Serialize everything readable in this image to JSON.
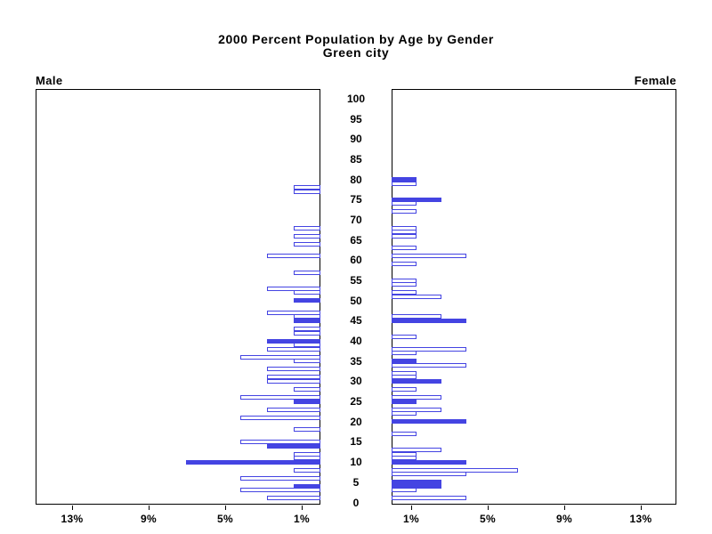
{
  "title": {
    "line1": "2000 Percent Population by Age by Gender",
    "line2": "Green city"
  },
  "panel_labels": {
    "male": "Male",
    "female": "Female"
  },
  "colors": {
    "bar_blue": "#4444E2",
    "frame_black": "#000000",
    "background": "#FFFFFF"
  },
  "chart_data": {
    "type": "bar",
    "subtype": "population-pyramid",
    "title": "2000 Percent Population by Age by Gender",
    "subtitle": "Green city",
    "orientation": "horizontal",
    "grid": false,
    "legend": "none",
    "age_axis": {
      "label_position": "center",
      "min": 0,
      "max": 100,
      "tick_step": 5
    },
    "value_axis": {
      "unit": "%",
      "min": 0,
      "max": 15,
      "tick_values": [
        1,
        5,
        9,
        13
      ],
      "tick_labels": [
        "1%",
        "5%",
        "9%",
        "13%"
      ]
    },
    "bar_styles": {
      "hollow": "outlined white bar",
      "solid": "filled blue bar"
    },
    "panels": [
      {
        "gender": "Male",
        "side": "left",
        "bars_grow": "leftward",
        "bars": [
          {
            "age": 78,
            "pct": 1.4,
            "filled": false
          },
          {
            "age": 77,
            "pct": 1.4,
            "filled": false
          },
          {
            "age": 68,
            "pct": 1.4,
            "filled": false
          },
          {
            "age": 66,
            "pct": 1.4,
            "filled": false
          },
          {
            "age": 64,
            "pct": 1.4,
            "filled": false
          },
          {
            "age": 61,
            "pct": 2.8,
            "filled": false
          },
          {
            "age": 57,
            "pct": 1.4,
            "filled": false
          },
          {
            "age": 53,
            "pct": 2.8,
            "filled": false
          },
          {
            "age": 52,
            "pct": 1.4,
            "filled": false
          },
          {
            "age": 50,
            "pct": 1.4,
            "filled": true
          },
          {
            "age": 47,
            "pct": 2.8,
            "filled": false
          },
          {
            "age": 46,
            "pct": 1.4,
            "filled": false
          },
          {
            "age": 45,
            "pct": 1.4,
            "filled": true
          },
          {
            "age": 43,
            "pct": 1.4,
            "filled": false
          },
          {
            "age": 42,
            "pct": 1.4,
            "filled": false
          },
          {
            "age": 40,
            "pct": 2.8,
            "filled": true
          },
          {
            "age": 39,
            "pct": 1.4,
            "filled": false
          },
          {
            "age": 38,
            "pct": 2.8,
            "filled": false
          },
          {
            "age": 36,
            "pct": 4.2,
            "filled": false
          },
          {
            "age": 35,
            "pct": 1.4,
            "filled": false
          },
          {
            "age": 33,
            "pct": 2.8,
            "filled": false
          },
          {
            "age": 31,
            "pct": 2.8,
            "filled": false
          },
          {
            "age": 30,
            "pct": 2.8,
            "filled": false
          },
          {
            "age": 28,
            "pct": 1.4,
            "filled": false
          },
          {
            "age": 26,
            "pct": 4.2,
            "filled": false
          },
          {
            "age": 25,
            "pct": 1.4,
            "filled": true
          },
          {
            "age": 23,
            "pct": 2.8,
            "filled": false
          },
          {
            "age": 21,
            "pct": 4.2,
            "filled": false
          },
          {
            "age": 18,
            "pct": 1.4,
            "filled": false
          },
          {
            "age": 15,
            "pct": 4.2,
            "filled": false
          },
          {
            "age": 14,
            "pct": 2.8,
            "filled": true
          },
          {
            "age": 12,
            "pct": 1.4,
            "filled": false
          },
          {
            "age": 11,
            "pct": 1.4,
            "filled": false
          },
          {
            "age": 10,
            "pct": 7.0,
            "filled": true
          },
          {
            "age": 8,
            "pct": 1.4,
            "filled": false
          },
          {
            "age": 6,
            "pct": 4.2,
            "filled": false
          },
          {
            "age": 4,
            "pct": 1.4,
            "filled": true
          },
          {
            "age": 3,
            "pct": 4.2,
            "filled": false
          },
          {
            "age": 1,
            "pct": 2.8,
            "filled": false
          }
        ]
      },
      {
        "gender": "Female",
        "side": "right",
        "bars_grow": "rightward",
        "bars": [
          {
            "age": 80,
            "pct": 1.3,
            "filled": true
          },
          {
            "age": 79,
            "pct": 1.3,
            "filled": false
          },
          {
            "age": 75,
            "pct": 2.6,
            "filled": true
          },
          {
            "age": 74,
            "pct": 1.3,
            "filled": false
          },
          {
            "age": 72,
            "pct": 1.3,
            "filled": false
          },
          {
            "age": 68,
            "pct": 1.3,
            "filled": false
          },
          {
            "age": 67,
            "pct": 1.3,
            "filled": false
          },
          {
            "age": 66,
            "pct": 1.3,
            "filled": false
          },
          {
            "age": 63,
            "pct": 1.3,
            "filled": false
          },
          {
            "age": 61,
            "pct": 3.9,
            "filled": false
          },
          {
            "age": 59,
            "pct": 1.3,
            "filled": false
          },
          {
            "age": 55,
            "pct": 1.3,
            "filled": false
          },
          {
            "age": 54,
            "pct": 1.3,
            "filled": false
          },
          {
            "age": 52,
            "pct": 1.3,
            "filled": false
          },
          {
            "age": 51,
            "pct": 2.6,
            "filled": false
          },
          {
            "age": 46,
            "pct": 2.6,
            "filled": false
          },
          {
            "age": 45,
            "pct": 3.9,
            "filled": true
          },
          {
            "age": 41,
            "pct": 1.3,
            "filled": false
          },
          {
            "age": 38,
            "pct": 3.9,
            "filled": false
          },
          {
            "age": 37,
            "pct": 1.3,
            "filled": false
          },
          {
            "age": 35,
            "pct": 1.3,
            "filled": true
          },
          {
            "age": 34,
            "pct": 3.9,
            "filled": false
          },
          {
            "age": 32,
            "pct": 1.3,
            "filled": false
          },
          {
            "age": 31,
            "pct": 1.3,
            "filled": false
          },
          {
            "age": 30,
            "pct": 2.6,
            "filled": true
          },
          {
            "age": 28,
            "pct": 1.3,
            "filled": false
          },
          {
            "age": 26,
            "pct": 2.6,
            "filled": false
          },
          {
            "age": 25,
            "pct": 1.3,
            "filled": true
          },
          {
            "age": 23,
            "pct": 2.6,
            "filled": false
          },
          {
            "age": 22,
            "pct": 1.3,
            "filled": false
          },
          {
            "age": 20,
            "pct": 3.9,
            "filled": true
          },
          {
            "age": 17,
            "pct": 1.3,
            "filled": false
          },
          {
            "age": 13,
            "pct": 2.6,
            "filled": false
          },
          {
            "age": 12,
            "pct": 1.3,
            "filled": false
          },
          {
            "age": 11,
            "pct": 1.3,
            "filled": false
          },
          {
            "age": 10,
            "pct": 3.9,
            "filled": true
          },
          {
            "age": 8,
            "pct": 6.6,
            "filled": false
          },
          {
            "age": 7,
            "pct": 3.9,
            "filled": false
          },
          {
            "age": 5,
            "pct": 2.6,
            "filled": true
          },
          {
            "age": 4,
            "pct": 2.6,
            "filled": true
          },
          {
            "age": 3,
            "pct": 1.3,
            "filled": false
          },
          {
            "age": 1,
            "pct": 3.9,
            "filled": false
          }
        ]
      }
    ]
  }
}
